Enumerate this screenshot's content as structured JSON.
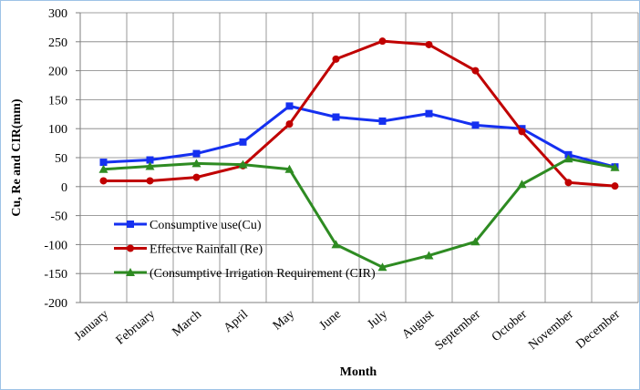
{
  "chart_data": {
    "type": "line",
    "y_label": "Cu, Re and CIR(mm)",
    "x_label": "Month",
    "categories": [
      "January",
      "February",
      "March",
      "April",
      "May",
      "June",
      "July",
      "August",
      "September",
      "October",
      "November",
      "December"
    ],
    "series": [
      {
        "name": "Consumptive use(Cu)",
        "color": "#1530f0",
        "marker": "square",
        "values": [
          42,
          46,
          57,
          77,
          139,
          120,
          113,
          126,
          106,
          100,
          55,
          34
        ]
      },
      {
        "name": "Effectve Rainfall (Re)",
        "color": "#c00000",
        "marker": "circle",
        "values": [
          10,
          10,
          16,
          36,
          108,
          220,
          251,
          245,
          200,
          95,
          7,
          1
        ]
      },
      {
        "name": "(Consumptive Irrigation Requirement (CIR)",
        "color": "#2e8b22",
        "marker": "triangle",
        "values": [
          30,
          35,
          40,
          38,
          30,
          -100,
          -139,
          -119,
          -95,
          4,
          48,
          33
        ]
      }
    ],
    "ylim": [
      -200,
      300
    ],
    "yticks": [
      -200,
      -150,
      -100,
      -50,
      0,
      50,
      100,
      150,
      200,
      250,
      300
    ],
    "grid": true,
    "legend": "lower left"
  }
}
